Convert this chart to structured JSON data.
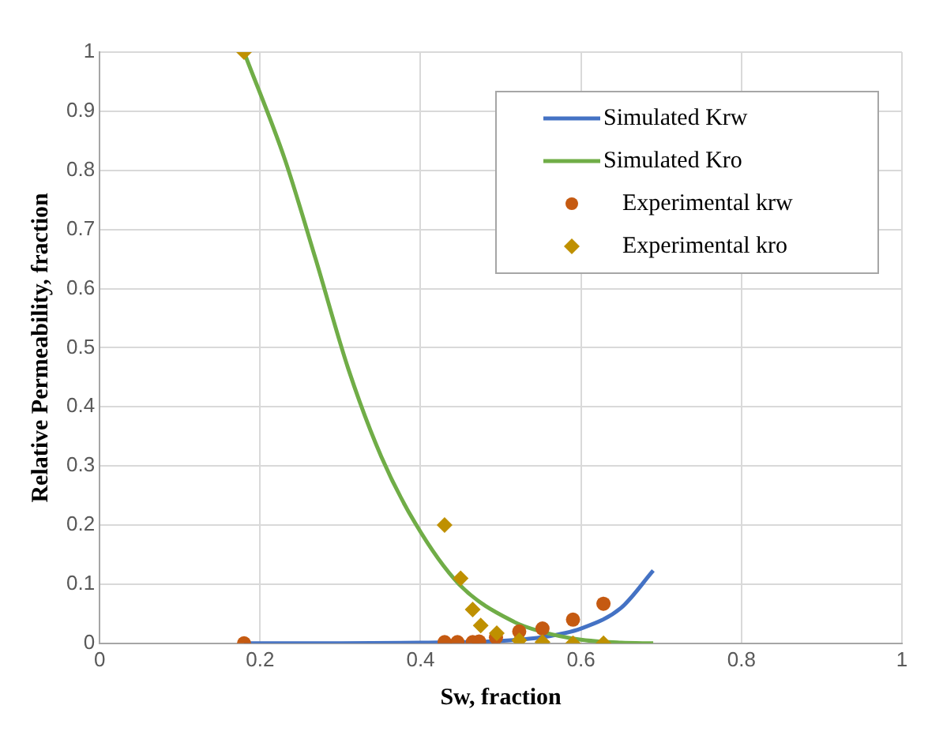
{
  "chart_data": {
    "type": "scatter",
    "xlabel": "Sw, fraction",
    "ylabel": "Relative Permeability, fraction",
    "xlim": [
      0,
      1
    ],
    "xticks": [
      0,
      0.2,
      0.4,
      0.6,
      0.8,
      1
    ],
    "ylim": [
      0,
      1
    ],
    "yticks": [
      0,
      0.1,
      0.2,
      0.3,
      0.4,
      0.5,
      0.6,
      0.7,
      0.8,
      0.9,
      1
    ],
    "grid": true,
    "legend": "top right",
    "series": [
      {
        "name": "Simulated Krw",
        "type": "line",
        "marker": "none",
        "color": "#4472c4",
        "x": [
          0.18,
          0.3,
          0.4,
          0.5,
          0.55,
          0.6,
          0.65,
          0.69
        ],
        "values": [
          0,
          0,
          0.001,
          0.004,
          0.01,
          0.025,
          0.06,
          0.123
        ]
      },
      {
        "name": "Simulated Kro",
        "type": "line",
        "marker": "none",
        "color": "#70ad47",
        "x": [
          0.18,
          0.231,
          0.269,
          0.31,
          0.351,
          0.393,
          0.448,
          0.517,
          0.55,
          0.6,
          0.65,
          0.69
        ],
        "values": [
          1,
          0.818,
          0.651,
          0.464,
          0.316,
          0.204,
          0.1,
          0.036,
          0.02,
          0.006,
          0.001,
          0
        ]
      },
      {
        "name": "Experimental krw",
        "type": "scatter",
        "marker": "circle",
        "color": "#c55a11",
        "x": [
          0.18,
          0.43,
          0.446,
          0.465,
          0.473,
          0.494,
          0.523,
          0.552,
          0.59,
          0.628
        ],
        "values": [
          0,
          0.002,
          0.002,
          0.002,
          0.003,
          0.01,
          0.02,
          0.025,
          0.04,
          0.067
        ]
      },
      {
        "name": "Experimental kro",
        "type": "scatter",
        "marker": "diamond",
        "color": "#bf9000",
        "x": [
          0.18,
          0.43,
          0.45,
          0.465,
          0.475,
          0.495,
          0.523,
          0.552,
          0.59,
          0.628
        ],
        "values": [
          1,
          0.2,
          0.11,
          0.057,
          0.03,
          0.017,
          0.005,
          0.002,
          0,
          0
        ]
      }
    ]
  }
}
